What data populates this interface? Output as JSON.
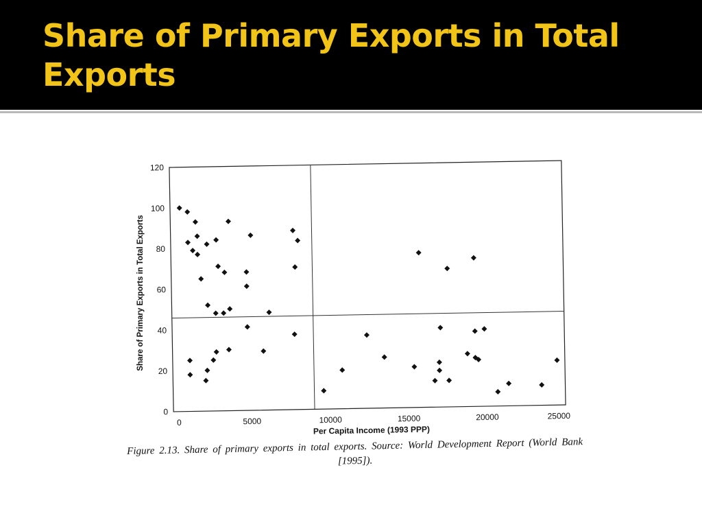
{
  "slide": {
    "title": "Share of Primary Exports in Total Exports"
  },
  "figure": {
    "caption": "Figure 2.13. Share of primary exports in total exports. Source: World Development Report (World Bank [1995])."
  },
  "colors": {
    "title_bar": "#000000",
    "title_text": "#f2c417",
    "points": "#111111"
  },
  "chart_data": {
    "type": "scatter",
    "title": "",
    "xlabel": "Per Capita Income (1993 PPP)",
    "ylabel": "Share of Primary Exports in Total Exports",
    "xlim": [
      0,
      25000
    ],
    "ylim": [
      0,
      120
    ],
    "xticks": [
      0,
      5000,
      10000,
      15000,
      20000,
      25000
    ],
    "yticks": [
      0,
      20,
      40,
      60,
      80,
      100,
      120
    ],
    "grid": false,
    "reference_lines": {
      "x": 9000,
      "y": 46
    },
    "points": [
      {
        "x": 600,
        "y": 100
      },
      {
        "x": 1100,
        "y": 98
      },
      {
        "x": 1600,
        "y": 93
      },
      {
        "x": 1100,
        "y": 83
      },
      {
        "x": 1700,
        "y": 86
      },
      {
        "x": 1400,
        "y": 79
      },
      {
        "x": 1700,
        "y": 77
      },
      {
        "x": 2300,
        "y": 82
      },
      {
        "x": 2900,
        "y": 84
      },
      {
        "x": 3700,
        "y": 93
      },
      {
        "x": 1900,
        "y": 65
      },
      {
        "x": 2300,
        "y": 52
      },
      {
        "x": 3000,
        "y": 71
      },
      {
        "x": 3400,
        "y": 68
      },
      {
        "x": 2800,
        "y": 48
      },
      {
        "x": 3300,
        "y": 48
      },
      {
        "x": 3700,
        "y": 50
      },
      {
        "x": 5100,
        "y": 86
      },
      {
        "x": 4800,
        "y": 68
      },
      {
        "x": 4800,
        "y": 61
      },
      {
        "x": 4800,
        "y": 41
      },
      {
        "x": 6200,
        "y": 48
      },
      {
        "x": 7800,
        "y": 88
      },
      {
        "x": 8100,
        "y": 83
      },
      {
        "x": 7900,
        "y": 70
      },
      {
        "x": 7800,
        "y": 37
      },
      {
        "x": 5800,
        "y": 29
      },
      {
        "x": 3600,
        "y": 30
      },
      {
        "x": 2800,
        "y": 29
      },
      {
        "x": 1100,
        "y": 25
      },
      {
        "x": 2600,
        "y": 25
      },
      {
        "x": 2200,
        "y": 20
      },
      {
        "x": 1100,
        "y": 18
      },
      {
        "x": 2100,
        "y": 15
      },
      {
        "x": 9600,
        "y": 9
      },
      {
        "x": 10800,
        "y": 19
      },
      {
        "x": 12400,
        "y": 36
      },
      {
        "x": 13500,
        "y": 25
      },
      {
        "x": 15400,
        "y": 20
      },
      {
        "x": 15800,
        "y": 76
      },
      {
        "x": 16700,
        "y": 13
      },
      {
        "x": 17000,
        "y": 22
      },
      {
        "x": 17000,
        "y": 18
      },
      {
        "x": 17100,
        "y": 39
      },
      {
        "x": 17600,
        "y": 68
      },
      {
        "x": 17600,
        "y": 13
      },
      {
        "x": 18800,
        "y": 26
      },
      {
        "x": 19300,
        "y": 73
      },
      {
        "x": 19300,
        "y": 37
      },
      {
        "x": 19300,
        "y": 24
      },
      {
        "x": 19500,
        "y": 23
      },
      {
        "x": 19900,
        "y": 38
      },
      {
        "x": 20700,
        "y": 7
      },
      {
        "x": 21400,
        "y": 11
      },
      {
        "x": 23500,
        "y": 10
      },
      {
        "x": 24500,
        "y": 22
      }
    ]
  }
}
